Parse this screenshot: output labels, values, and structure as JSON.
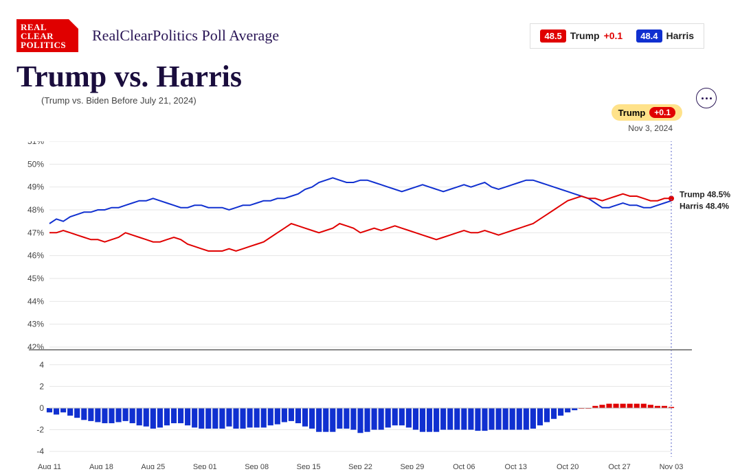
{
  "site": {
    "logo_lines": [
      "REAL",
      "CLEAR",
      "POLITICS"
    ],
    "title": "RealClearPolitics Poll Average"
  },
  "legend": {
    "trump": {
      "value": "48.5",
      "name": "Trump",
      "delta": "+0.1"
    },
    "harris": {
      "value": "48.4",
      "name": "Harris"
    }
  },
  "title": "Trump vs. Harris",
  "subtitle": "(Trump vs. Biden Before July 21, 2024)",
  "callout": {
    "name": "Trump",
    "delta": "+0.1",
    "date": "Nov 3, 2024"
  },
  "colors": {
    "trump": "#e00000",
    "harris": "#1030d0",
    "grid": "#e6e6e6",
    "axis_text": "#444444",
    "rule": "#888888",
    "marker_line": "#5560c8",
    "bg": "#ffffff"
  },
  "chart": {
    "type": "line",
    "x_labels": [
      "Aug 11",
      "Aug 18",
      "Aug 25",
      "Sep 01",
      "Sep 08",
      "Sep 15",
      "Sep 22",
      "Sep 29",
      "Oct 06",
      "Oct 13",
      "Oct 20",
      "Oct 27",
      "Nov 03"
    ],
    "y_ticks": [
      42,
      43,
      44,
      45,
      46,
      47,
      48,
      49,
      50,
      51
    ],
    "ylim": [
      42,
      51
    ],
    "line_width": 2,
    "trump": [
      47.0,
      47.0,
      47.1,
      47.0,
      46.9,
      46.8,
      46.7,
      46.7,
      46.6,
      46.7,
      46.8,
      47.0,
      46.9,
      46.8,
      46.7,
      46.6,
      46.6,
      46.7,
      46.8,
      46.7,
      46.5,
      46.4,
      46.3,
      46.2,
      46.2,
      46.2,
      46.3,
      46.2,
      46.3,
      46.4,
      46.5,
      46.6,
      46.8,
      47.0,
      47.2,
      47.4,
      47.3,
      47.2,
      47.1,
      47.0,
      47.1,
      47.2,
      47.4,
      47.3,
      47.2,
      47.0,
      47.1,
      47.2,
      47.1,
      47.2,
      47.3,
      47.2,
      47.1,
      47.0,
      46.9,
      46.8,
      46.7,
      46.8,
      46.9,
      47.0,
      47.1,
      47.0,
      47.0,
      47.1,
      47.0,
      46.9,
      47.0,
      47.1,
      47.2,
      47.3,
      47.4,
      47.6,
      47.8,
      48.0,
      48.2,
      48.4,
      48.5,
      48.6,
      48.5,
      48.5,
      48.4,
      48.5,
      48.6,
      48.7,
      48.6,
      48.6,
      48.5,
      48.4,
      48.4,
      48.5,
      48.5
    ],
    "harris": [
      47.4,
      47.6,
      47.5,
      47.7,
      47.8,
      47.9,
      47.9,
      48.0,
      48.0,
      48.1,
      48.1,
      48.2,
      48.3,
      48.4,
      48.4,
      48.5,
      48.4,
      48.3,
      48.2,
      48.1,
      48.1,
      48.2,
      48.2,
      48.1,
      48.1,
      48.1,
      48.0,
      48.1,
      48.2,
      48.2,
      48.3,
      48.4,
      48.4,
      48.5,
      48.5,
      48.6,
      48.7,
      48.9,
      49.0,
      49.2,
      49.3,
      49.4,
      49.3,
      49.2,
      49.2,
      49.3,
      49.3,
      49.2,
      49.1,
      49.0,
      48.9,
      48.8,
      48.9,
      49.0,
      49.1,
      49.0,
      48.9,
      48.8,
      48.9,
      49.0,
      49.1,
      49.0,
      49.1,
      49.2,
      49.0,
      48.9,
      49.0,
      49.1,
      49.2,
      49.3,
      49.3,
      49.2,
      49.1,
      49.0,
      48.9,
      48.8,
      48.7,
      48.6,
      48.5,
      48.3,
      48.1,
      48.1,
      48.2,
      48.3,
      48.2,
      48.2,
      48.1,
      48.1,
      48.2,
      48.3,
      48.4
    ],
    "end_labels": {
      "trump": "Trump 48.5%",
      "harris": "Harris 48.4%"
    }
  },
  "diff": {
    "type": "bar",
    "y_ticks": [
      -4,
      -2,
      0,
      2,
      4
    ],
    "ylim": [
      -4.5,
      5
    ],
    "bar_width": 0.82
  }
}
